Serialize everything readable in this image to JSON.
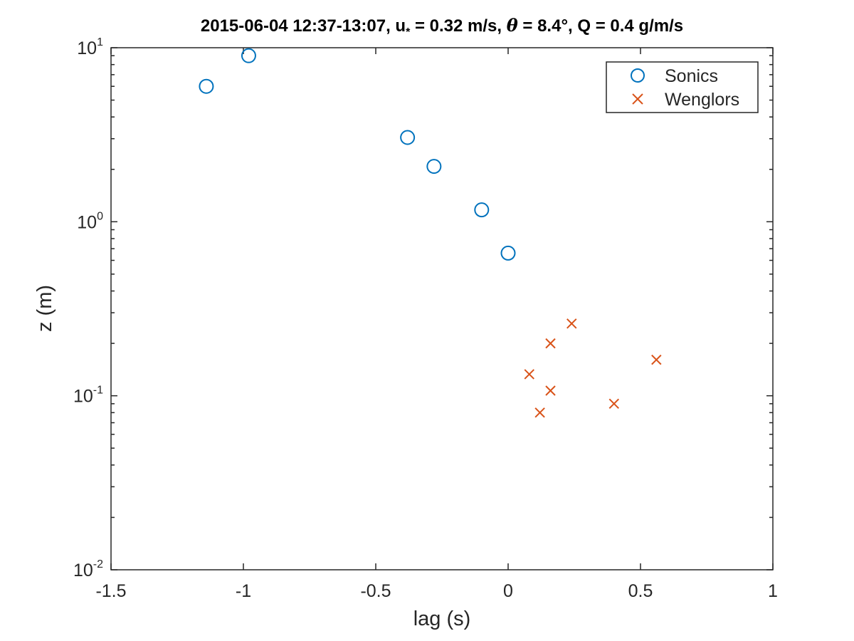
{
  "chart_data": {
    "type": "scatter",
    "title": "2015-06-04 12:37-13:07, u* = 0.32 m/s, θ = 8.4°, Q = 0.4 g/m/s",
    "title_parts": {
      "t1": "2015-06-04 12:37-13:07, u",
      "sub": "*",
      "t2": " = 0.32 m/s, ",
      "theta": "θ",
      "t3": " = 8.4°, Q = 0.4 g/m/s"
    },
    "xlabel": "lag (s)",
    "ylabel": "z (m)",
    "xlim": [
      -1.5,
      1
    ],
    "ylim": [
      0.01,
      10
    ],
    "yscale": "log",
    "xticks": [
      -1.5,
      -1,
      -0.5,
      0,
      0.5,
      1
    ],
    "xtick_labels": [
      "-1.5",
      "-1",
      "-0.5",
      "0",
      "0.5",
      "1"
    ],
    "yticks": [
      0.01,
      0.1,
      1,
      10
    ],
    "ytick_labels": [
      {
        "base": "10",
        "exp": "-2"
      },
      {
        "base": "10",
        "exp": "-1"
      },
      {
        "base": "10",
        "exp": "0"
      },
      {
        "base": "10",
        "exp": "1"
      }
    ],
    "grid": false,
    "legend_position": "top-right",
    "series": [
      {
        "name": "Sonics",
        "marker": "circle",
        "color": "#0072BD",
        "points": [
          {
            "x": -1.14,
            "y": 6.0
          },
          {
            "x": -0.98,
            "y": 9.0
          },
          {
            "x": -0.38,
            "y": 3.05
          },
          {
            "x": -0.28,
            "y": 2.08
          },
          {
            "x": -0.1,
            "y": 1.17
          },
          {
            "x": 0.0,
            "y": 0.66
          }
        ]
      },
      {
        "name": "Wenglors",
        "marker": "cross",
        "color": "#D95319",
        "points": [
          {
            "x": 0.24,
            "y": 0.26
          },
          {
            "x": 0.16,
            "y": 0.2
          },
          {
            "x": 0.08,
            "y": 0.133
          },
          {
            "x": 0.16,
            "y": 0.107
          },
          {
            "x": 0.12,
            "y": 0.08
          },
          {
            "x": 0.4,
            "y": 0.09
          },
          {
            "x": 0.56,
            "y": 0.161
          }
        ]
      }
    ]
  }
}
